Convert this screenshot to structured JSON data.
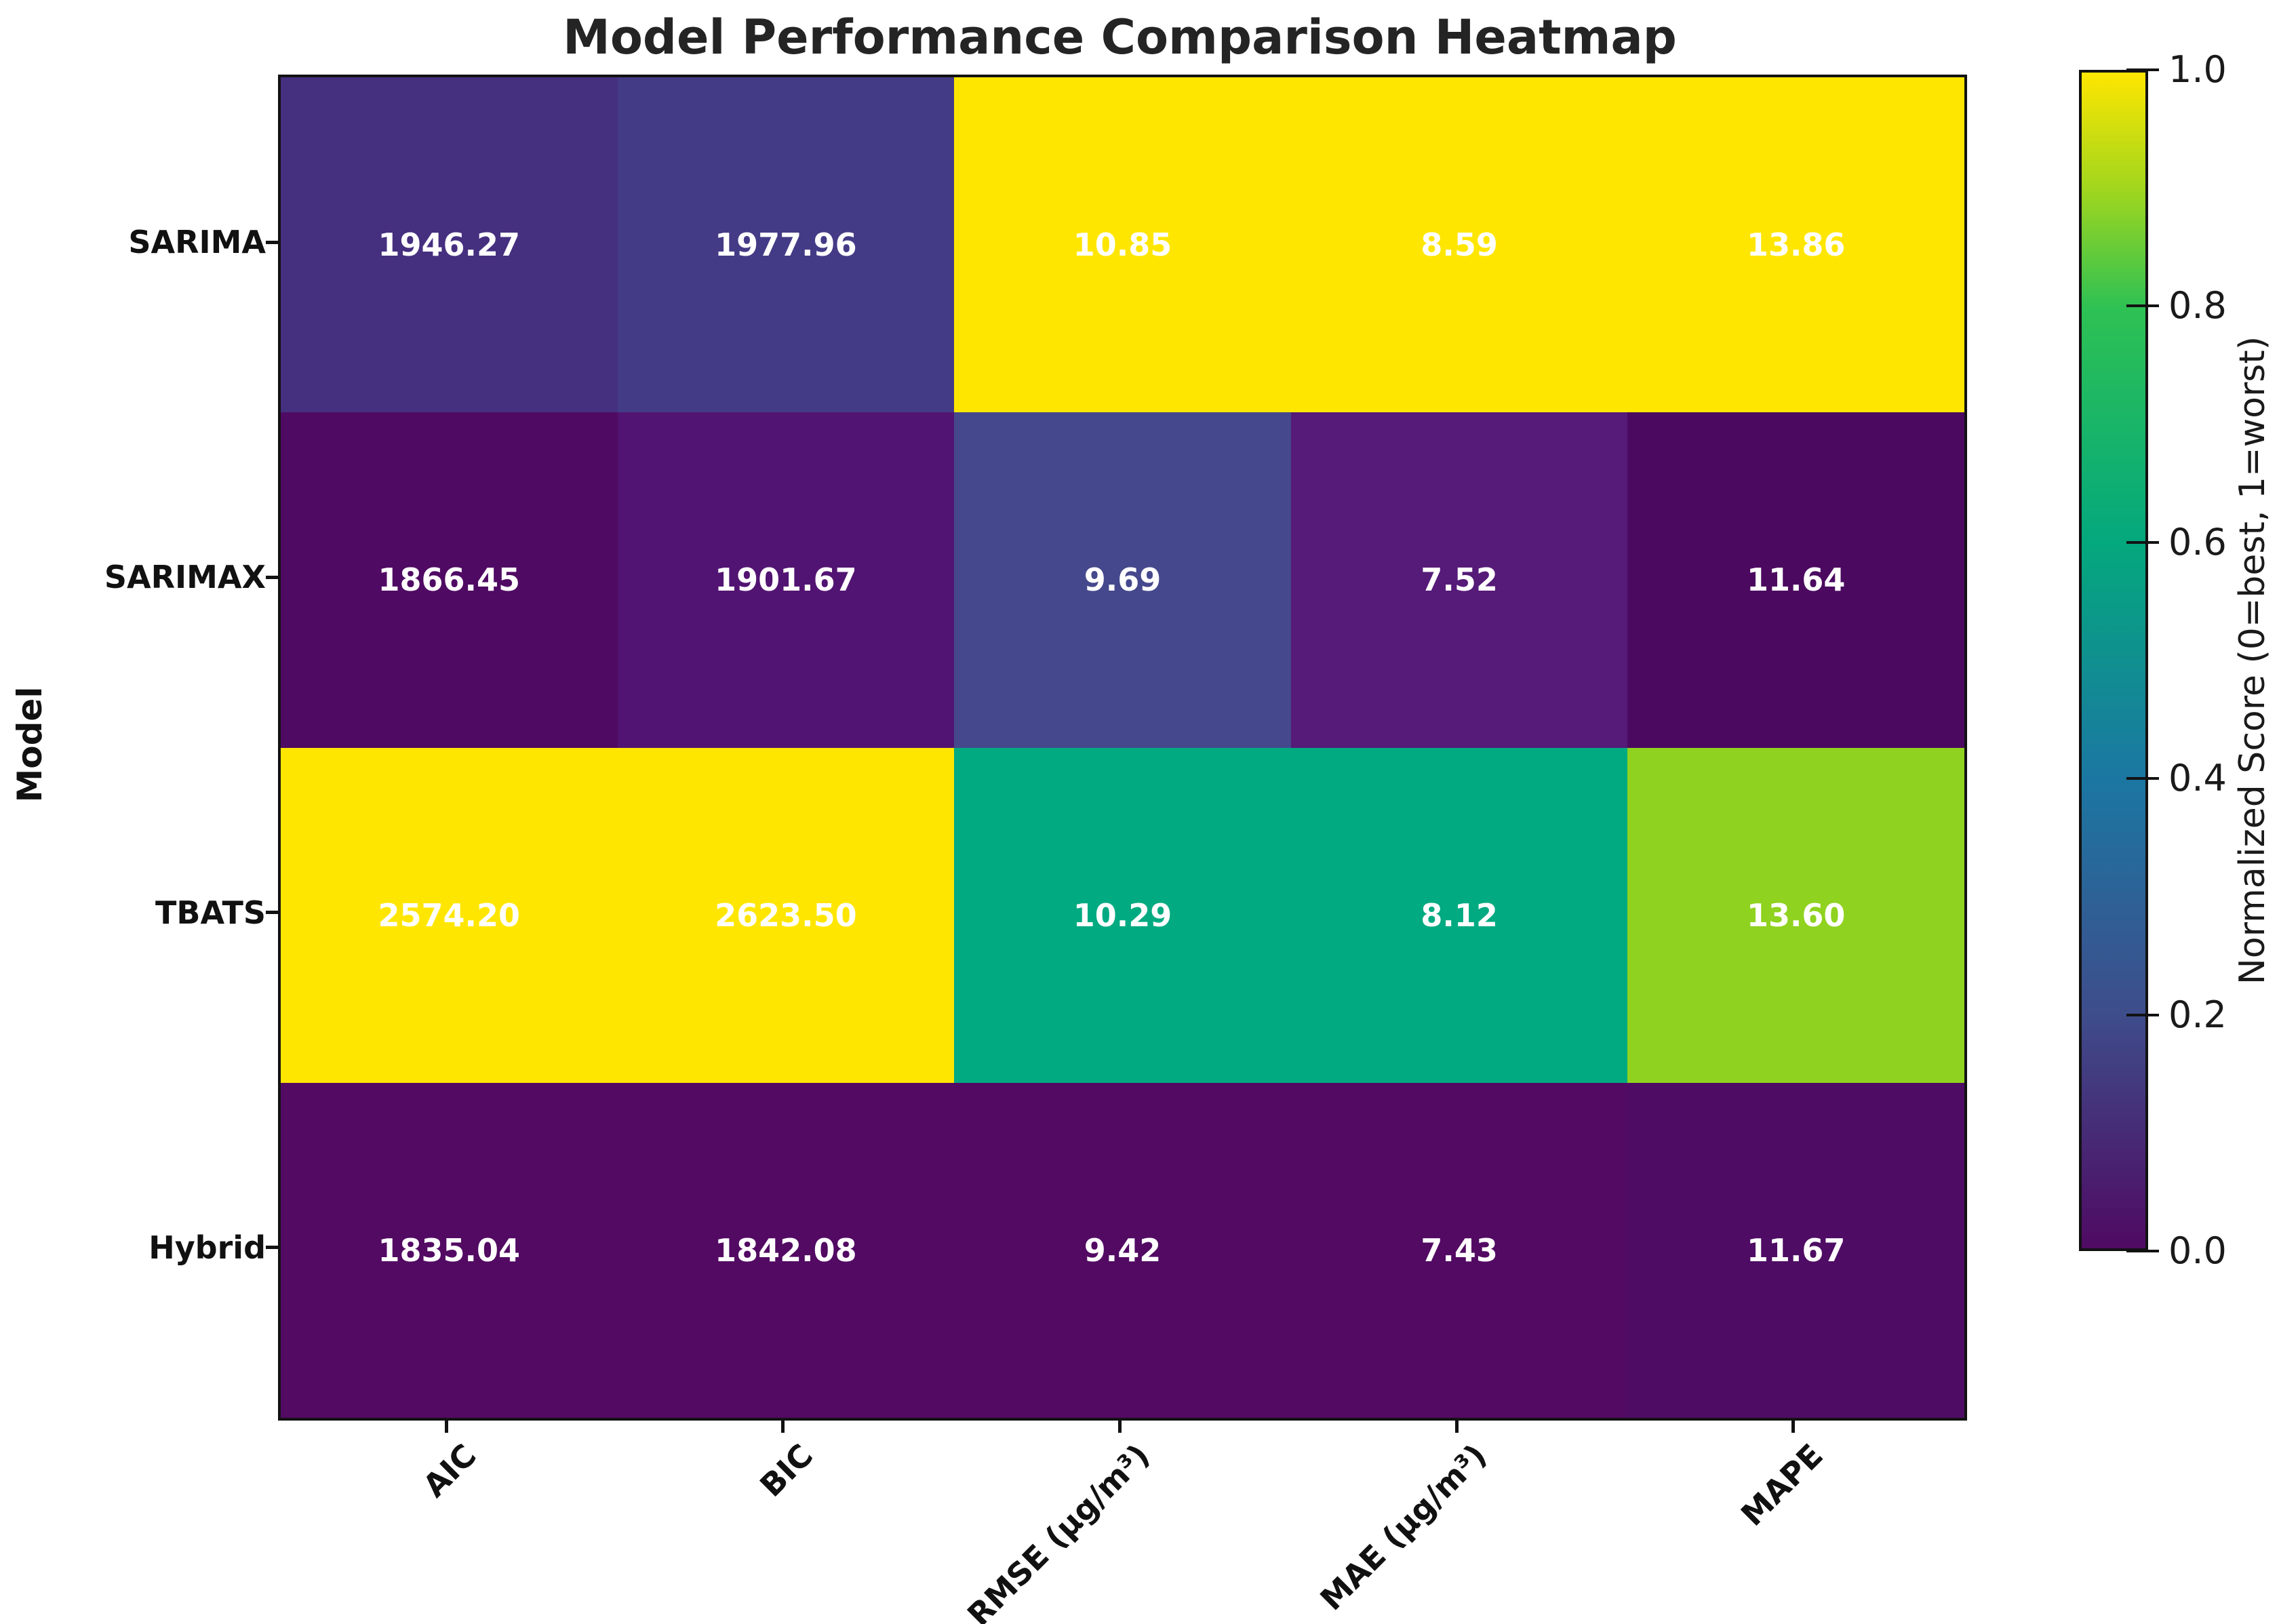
{
  "chart_data": {
    "type": "heatmap",
    "title": "Model Performance Comparison Heatmap",
    "xlabel": "",
    "ylabel": "Model",
    "rows": [
      "SARIMA",
      "SARIMAX",
      "TBATS",
      "Hybrid"
    ],
    "columns": [
      "AIC",
      "BIC",
      "RMSE (μg/m³)",
      "MAE (μg/m³)",
      "MAPE"
    ],
    "values": [
      [
        1946.27,
        1977.96,
        10.85,
        8.59,
        13.86
      ],
      [
        1866.45,
        1901.67,
        9.69,
        7.52,
        11.64
      ],
      [
        2574.2,
        2623.5,
        10.29,
        8.12,
        13.6
      ],
      [
        1835.04,
        1842.08,
        9.42,
        7.43,
        11.67
      ]
    ],
    "cell_labels": [
      [
        "1946.27",
        "1977.96",
        "10.85",
        "8.59",
        "13.86"
      ],
      [
        "1866.45",
        "1901.67",
        "9.69",
        "7.52",
        "11.64"
      ],
      [
        "2574.20",
        "2623.50",
        "10.29",
        "8.12",
        "13.60"
      ],
      [
        "1835.04",
        "1842.08",
        "9.42",
        "7.43",
        "11.67"
      ]
    ],
    "cell_colors": [
      [
        "#452f7f",
        "#433b86",
        "#ffe600",
        "#ffe600",
        "#ffe600"
      ],
      [
        "#4f0a63",
        "#521472",
        "#45488c",
        "#561a78",
        "#4b0a60"
      ],
      [
        "#ffe600",
        "#ffe600",
        "#02aa81",
        "#02aa81",
        "#8fd21f"
      ],
      [
        "#520a63",
        "#520a63",
        "#520a63",
        "#520a63",
        "#4e0c64"
      ]
    ],
    "grid": false,
    "colorbar": {
      "label": "Normalized Score (0=best, 1=worst)",
      "tick_labels": [
        "1.0",
        "0.8",
        "0.6",
        "0.4",
        "0.2",
        "0.0"
      ],
      "min": 0.0,
      "max": 1.0,
      "position": "right",
      "gradient_stops": [
        {
          "pos": 0.0,
          "color": "#4f0a63"
        },
        {
          "pos": 0.2,
          "color": "#3e4d8b"
        },
        {
          "pos": 0.4,
          "color": "#1b77a2"
        },
        {
          "pos": 0.6,
          "color": "#04a87d"
        },
        {
          "pos": 0.8,
          "color": "#2ec153"
        },
        {
          "pos": 0.9,
          "color": "#a0d61e"
        },
        {
          "pos": 1.0,
          "color": "#ffe600"
        }
      ]
    }
  },
  "colors": {
    "background": "#ffffff",
    "frame": "#121212",
    "text": "#111111",
    "cell_text": "#ffffff"
  }
}
